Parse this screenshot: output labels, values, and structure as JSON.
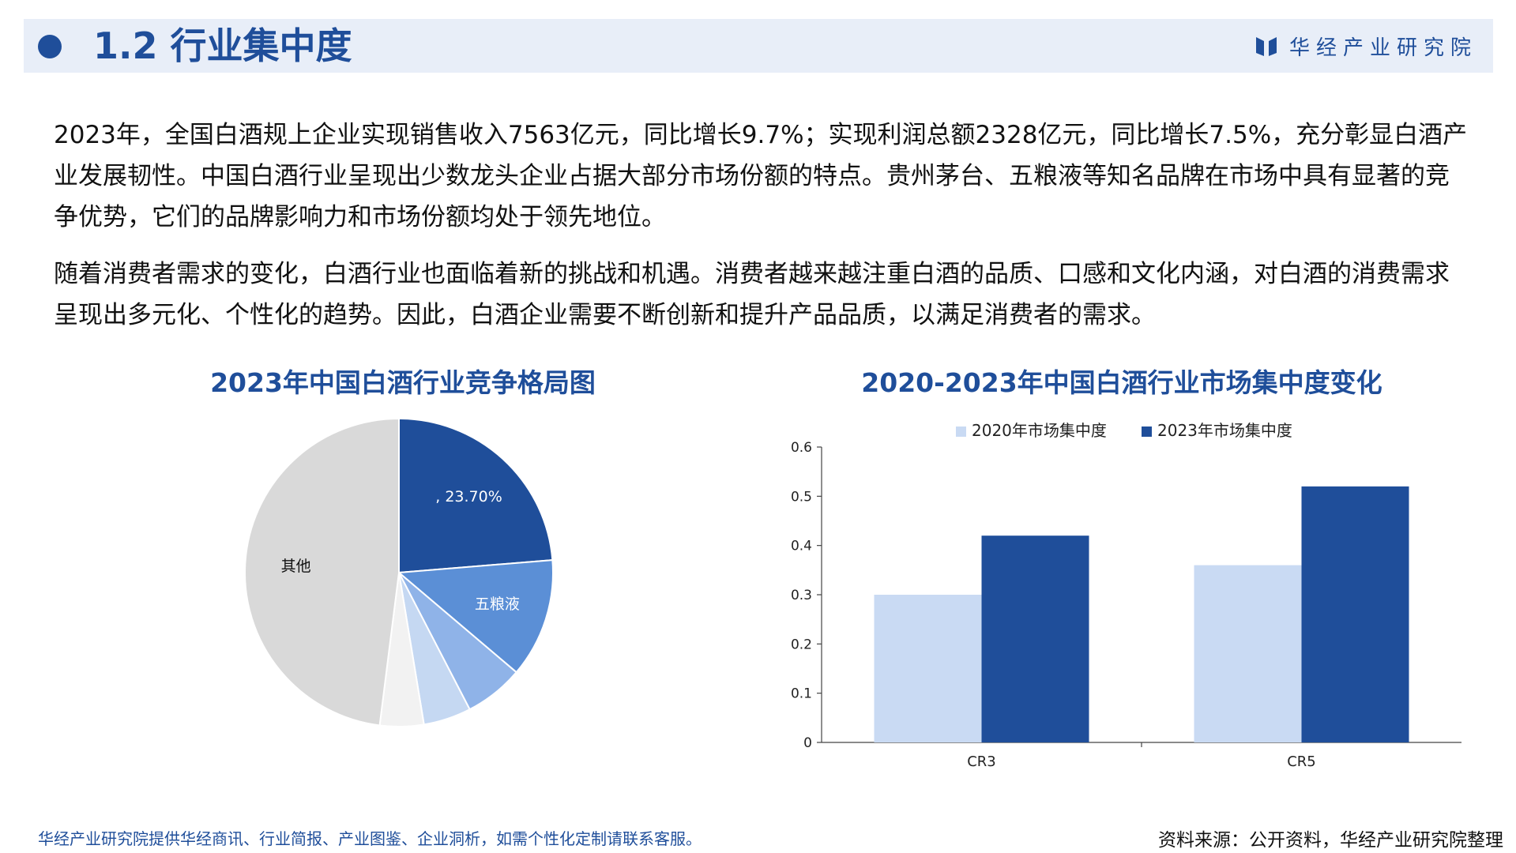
{
  "header": {
    "title": "1.2 行业集中度",
    "brand": "华经产业研究院",
    "colors": {
      "accent": "#1f4e9a",
      "band": "#e8eef8"
    }
  },
  "paragraphs": [
    "2023年，全国白酒规上企业实现销售收入7563亿元，同比增长9.7%；实现利润总额2328亿元，同比增长7.5%，充分彰显白酒产业发展韧性。中国白酒行业呈现出少数龙头企业占据大部分市场份额的特点。贵州茅台、五粮液等知名品牌在市场中具有显著的竞争优势，它们的品牌影响力和市场份额均处于领先地位。",
    "随着消费者需求的变化，白酒行业也面临着新的挑战和机遇。消费者越来越注重白酒的品质、口感和文化内涵，对白酒的消费需求呈现出多元化、个性化的趋势。因此，白酒企业需要不断创新和提升产品品质，以满足消费者的需求。"
  ],
  "chart_data": [
    {
      "type": "pie",
      "title": "2023年中国白酒行业竞争格局图",
      "slices": [
        {
          "label": ", 23.70%",
          "value": 23.7,
          "color": "#1f4e9a",
          "label_color": "#ffffff"
        },
        {
          "label": "五粮液",
          "value": 12.5,
          "color": "#5b8fd6",
          "label_color": "#ffffff"
        },
        {
          "label": "",
          "value": 6.2,
          "color": "#8fb3e8",
          "label_color": "#ffffff"
        },
        {
          "label": "",
          "value": 5.0,
          "color": "#c5d8f2",
          "label_color": "#111111"
        },
        {
          "label": "",
          "value": 4.6,
          "color": "#f2f2f2",
          "label_color": "#111111"
        },
        {
          "label": "其他",
          "value": 48.0,
          "color": "#d9d9d9",
          "label_color": "#111111"
        }
      ]
    },
    {
      "type": "bar",
      "title": "2020-2023年中国白酒行业市场集中度变化",
      "categories": [
        "CR3",
        "CR5"
      ],
      "series": [
        {
          "name": "2020年市场集中度",
          "values": [
            0.3,
            0.36
          ],
          "color": "#c9daf3"
        },
        {
          "name": "2023年市场集中度",
          "values": [
            0.42,
            0.52
          ],
          "color": "#1f4e9a"
        }
      ],
      "ylim": [
        0,
        0.6
      ],
      "yticks": [
        "0",
        "0.1",
        "0.2",
        "0.3",
        "0.4",
        "0.5",
        "0.6"
      ],
      "legend": "top"
    }
  ],
  "footer": {
    "left": "华经产业研究院提供华经商讯、行业简报、产业图鉴、企业洞析，如需个性化定制请联系客服。",
    "right": "资料来源：公开资料，华经产业研究院整理"
  }
}
